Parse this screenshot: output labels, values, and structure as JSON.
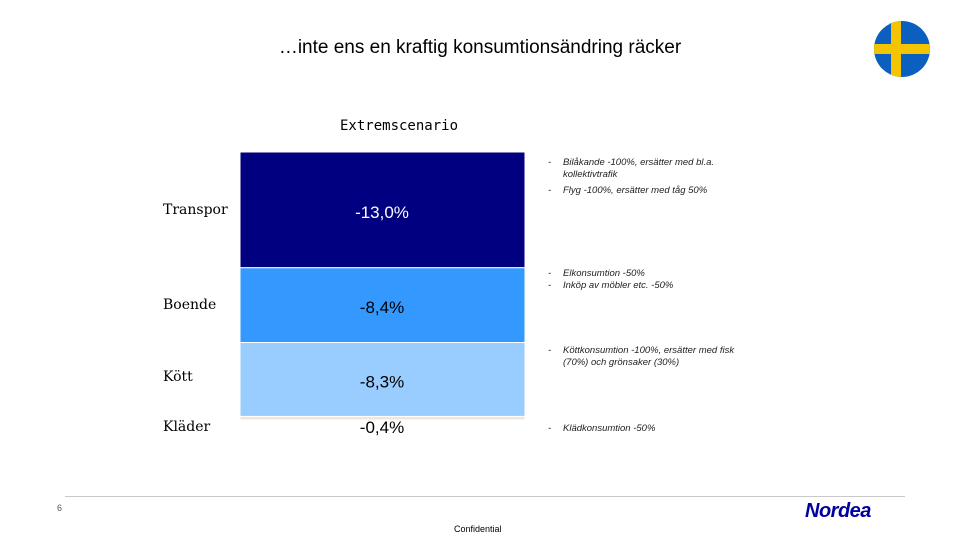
{
  "title": "…inte ens en kraftig konsumtionsändring räcker",
  "chart_data": {
    "type": "bar",
    "subtitle": "Extremscenario",
    "categories": [
      "Transpor",
      "Boende",
      "Kött",
      "Kläder"
    ],
    "values": [
      -13.0,
      -8.4,
      -8.3,
      -0.4
    ],
    "value_labels": [
      "-13,0%",
      "-8,4%",
      "-8,3%",
      "-0,4%"
    ],
    "colors": [
      "#000080",
      "#3399ff",
      "#99ccff",
      "#f0e6e0"
    ],
    "notes": [
      [
        {
          "dash": "-",
          "text": "Bilåkande -100%, ersätter med bl.a. kollektivtrafik"
        },
        {
          "dash": "-",
          "text": "Flyg -100%, ersätter med tåg 50%"
        }
      ],
      [
        {
          "dash": "-",
          "text": "Elkonsumtion -50%"
        },
        {
          "dash": "-",
          "text": "Inköp av möbler etc. -50%"
        }
      ],
      [
        {
          "dash": "-",
          "text": "Köttkonsumtion -100%, ersätter med fisk (70%) och grönsaker (30%)"
        }
      ],
      [
        {
          "dash": "-",
          "text": "Klädkonsumtion -50%"
        }
      ]
    ]
  },
  "flag": {
    "name": "sweden-flag-icon",
    "blue": "#0a5fbf",
    "yellow": "#f5c400"
  },
  "footer": {
    "page_number": "6",
    "confidential": "Confidential",
    "logo": "Nordea"
  }
}
